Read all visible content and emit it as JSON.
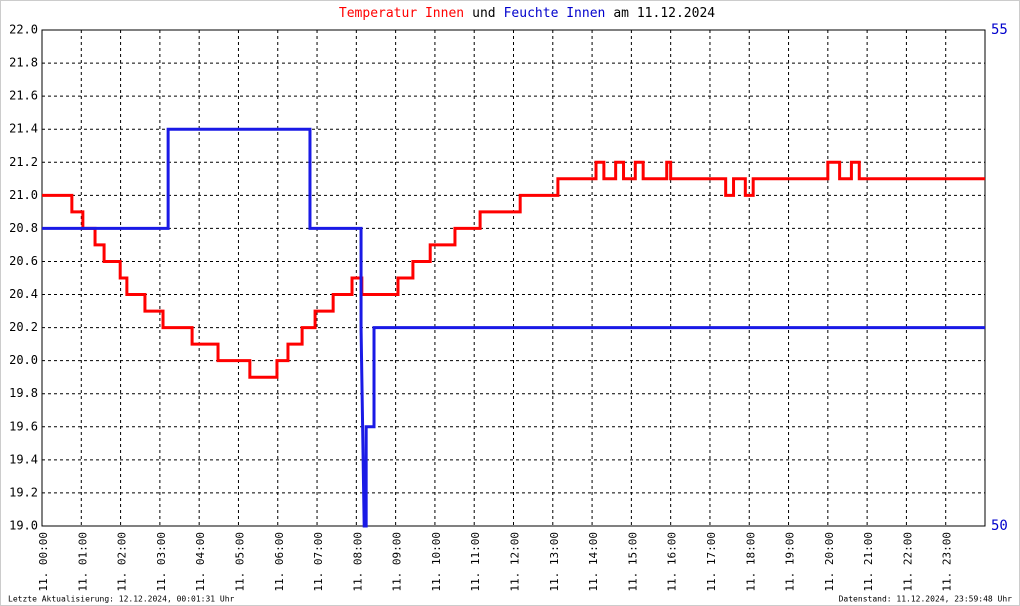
{
  "chart_data": {
    "type": "line",
    "title": [
      {
        "text": "Temperatur Innen",
        "color": "#ff0000"
      },
      {
        "text": "und",
        "color": "#000000"
      },
      {
        "text": "Feuchte Innen",
        "color": "#0000cc"
      },
      {
        "text": "am 11.12.2024",
        "color": "#000000"
      }
    ],
    "footer_left": "Letzte Aktualisierung: 12.12.2024, 00:01:31 Uhr",
    "footer_right": "Datenstand: 11.12.2024, 23:59:48 Uhr",
    "xlim": [
      0,
      24
    ],
    "xticks": [
      {
        "value": 0,
        "label": "11. 00:00"
      },
      {
        "value": 1,
        "label": "11. 01:00"
      },
      {
        "value": 2,
        "label": "11. 02:00"
      },
      {
        "value": 3,
        "label": "11. 03:00"
      },
      {
        "value": 4,
        "label": "11. 04:00"
      },
      {
        "value": 5,
        "label": "11. 05:00"
      },
      {
        "value": 6,
        "label": "11. 06:00"
      },
      {
        "value": 7,
        "label": "11. 07:00"
      },
      {
        "value": 8,
        "label": "11. 08:00"
      },
      {
        "value": 9,
        "label": "11. 09:00"
      },
      {
        "value": 10,
        "label": "11. 10:00"
      },
      {
        "value": 11,
        "label": "11. 11:00"
      },
      {
        "value": 12,
        "label": "11. 12:00"
      },
      {
        "value": 13,
        "label": "11. 13:00"
      },
      {
        "value": 14,
        "label": "11. 14:00"
      },
      {
        "value": 15,
        "label": "11. 15:00"
      },
      {
        "value": 16,
        "label": "11. 16:00"
      },
      {
        "value": 17,
        "label": "11. 17:00"
      },
      {
        "value": 18,
        "label": "11. 18:00"
      },
      {
        "value": 19,
        "label": "11. 19:00"
      },
      {
        "value": 20,
        "label": "11. 20:00"
      },
      {
        "value": 21,
        "label": "11. 21:00"
      },
      {
        "value": 22,
        "label": "11. 22:00"
      },
      {
        "value": 23,
        "label": "11. 23:00"
      }
    ],
    "ylim": [
      19.0,
      22.0
    ],
    "yticks": [
      {
        "value": 19.0,
        "label": "19.0"
      },
      {
        "value": 19.2,
        "label": "19.2"
      },
      {
        "value": 19.4,
        "label": "19.4"
      },
      {
        "value": 19.6,
        "label": "19.6"
      },
      {
        "value": 19.8,
        "label": "19.8"
      },
      {
        "value": 20.0,
        "label": "20.0"
      },
      {
        "value": 20.2,
        "label": "20.2"
      },
      {
        "value": 20.4,
        "label": "20.4"
      },
      {
        "value": 20.6,
        "label": "20.6"
      },
      {
        "value": 20.8,
        "label": "20.8"
      },
      {
        "value": 21.0,
        "label": "21.0"
      },
      {
        "value": 21.2,
        "label": "21.2"
      },
      {
        "value": 21.4,
        "label": "21.4"
      },
      {
        "value": 21.6,
        "label": "21.6"
      },
      {
        "value": 21.8,
        "label": "21.8"
      },
      {
        "value": 22.0,
        "label": "22.0"
      }
    ],
    "y2lim": [
      50,
      55
    ],
    "y2ticks": [
      50,
      55
    ],
    "y2color": "#0000cc",
    "grid": true,
    "series": [
      {
        "color": "#ff0000",
        "x": [
          0,
          0.76,
          0.76,
          1.04,
          1.04,
          1.35,
          1.35,
          1.58,
          1.58,
          1.99,
          1.99,
          2.16,
          2.16,
          2.62,
          2.62,
          3.08,
          3.08,
          3.82,
          3.82,
          4.48,
          4.48,
          5.29,
          5.29,
          5.98,
          5.98,
          6.26,
          6.26,
          6.62,
          6.62,
          6.95,
          6.95,
          7.41,
          7.41,
          7.89,
          7.89,
          8.14,
          8.14,
          9.06,
          9.06,
          9.44,
          9.44,
          9.88,
          9.88,
          10.51,
          10.51,
          11.15,
          11.15,
          12.17,
          12.17,
          13.13,
          13.13,
          14.1,
          14.1,
          14.3,
          14.3,
          14.6,
          14.6,
          14.8,
          14.8,
          15.1,
          15.1,
          15.3,
          15.3,
          15.9,
          15.9,
          16.0,
          16.0,
          17.4,
          17.4,
          17.6,
          17.6,
          17.9,
          17.9,
          18.1,
          18.1,
          20.0,
          20.0,
          20.3,
          20.3,
          20.6,
          20.6,
          20.8,
          20.8,
          24
        ],
        "values": [
          21.0,
          21.0,
          20.9,
          20.9,
          20.8,
          20.8,
          20.7,
          20.7,
          20.6,
          20.6,
          20.5,
          20.5,
          20.4,
          20.4,
          20.3,
          20.3,
          20.2,
          20.2,
          20.1,
          20.1,
          20.0,
          20.0,
          19.9,
          19.9,
          20.0,
          20.0,
          20.1,
          20.1,
          20.2,
          20.2,
          20.3,
          20.3,
          20.4,
          20.4,
          20.5,
          20.5,
          20.4,
          20.4,
          20.5,
          20.5,
          20.6,
          20.6,
          20.7,
          20.7,
          20.8,
          20.8,
          20.9,
          20.9,
          21.0,
          21.0,
          21.1,
          21.1,
          21.2,
          21.2,
          21.1,
          21.1,
          21.2,
          21.2,
          21.1,
          21.1,
          21.2,
          21.2,
          21.1,
          21.1,
          21.2,
          21.2,
          21.1,
          21.1,
          21.0,
          21.0,
          21.1,
          21.1,
          21.0,
          21.0,
          21.1,
          21.1,
          21.2,
          21.2,
          21.1,
          21.1,
          21.2,
          21.2,
          21.1,
          21.1
        ]
      },
      {
        "color": "#1a1ae6",
        "axis": "y2",
        "x": [
          0,
          3.21,
          3.21,
          6.82,
          6.82,
          8.12,
          8.12,
          8.2,
          8.25,
          8.25,
          8.45,
          8.45,
          24
        ],
        "values": [
          53,
          53,
          54,
          54,
          53,
          53,
          52,
          50,
          50,
          51,
          51,
          52,
          52
        ]
      }
    ]
  }
}
